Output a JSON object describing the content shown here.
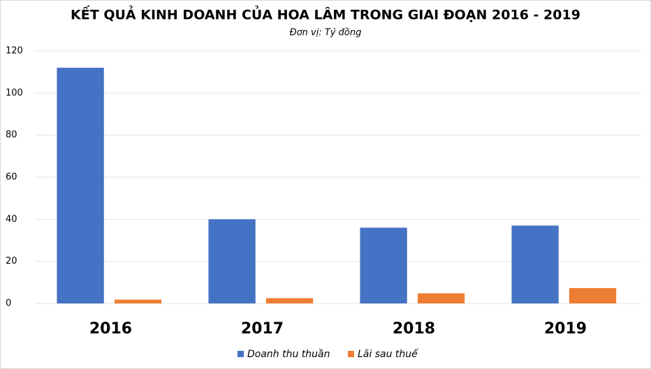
{
  "chart_data": {
    "type": "bar",
    "title": "KẾT QUẢ KINH DOANH CỦA HOA LÂM TRONG GIAI ĐOẠN 2016 - 2019",
    "subtitle": "Đơn vị: Tỷ đồng",
    "categories": [
      "2016",
      "2017",
      "2018",
      "2019"
    ],
    "series": [
      {
        "name": "Doanh thu thuần",
        "color": "#4472c4",
        "values": [
          112,
          40,
          36,
          37
        ]
      },
      {
        "name": "Lãi sau thuế",
        "color": "#ed7d31",
        "values": [
          1.8,
          2.5,
          4.8,
          7.3
        ]
      }
    ],
    "ylim": [
      0,
      120
    ],
    "yticks": [
      0,
      20,
      40,
      60,
      80,
      100,
      120
    ],
    "grid": true,
    "legend": "bottom"
  }
}
